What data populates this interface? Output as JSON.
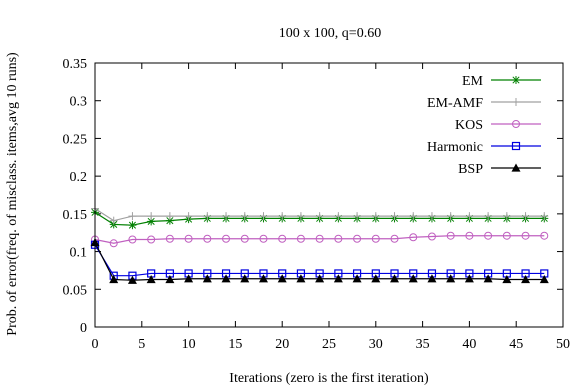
{
  "chart_data": {
    "type": "line",
    "title": "100 x 100, q=0.60",
    "xlabel": "Iterations (zero is the first iteration)",
    "ylabel": "Prob. of error(freq. of misclass. items,avg 10 runs)",
    "xlim": [
      0,
      50
    ],
    "ylim": [
      0,
      0.35
    ],
    "xticks": [
      0,
      5,
      10,
      15,
      20,
      25,
      30,
      35,
      40,
      45,
      50
    ],
    "yticks": [
      0,
      0.05,
      0.1,
      0.15,
      0.2,
      0.25,
      0.3,
      0.35
    ],
    "grid": false,
    "legend_position": "top-right",
    "x": [
      0,
      2,
      4,
      6,
      8,
      10,
      12,
      14,
      16,
      18,
      20,
      22,
      24,
      26,
      28,
      30,
      32,
      34,
      36,
      38,
      40,
      42,
      44,
      46,
      48
    ],
    "series": [
      {
        "name": "EM",
        "color": "#008000",
        "marker": "asterisk",
        "values": [
          0.152,
          0.136,
          0.135,
          0.14,
          0.141,
          0.143,
          0.144,
          0.144,
          0.144,
          0.144,
          0.144,
          0.144,
          0.144,
          0.144,
          0.144,
          0.144,
          0.144,
          0.144,
          0.144,
          0.144,
          0.144,
          0.144,
          0.144,
          0.144,
          0.144
        ]
      },
      {
        "name": "EM-AMF",
        "color": "#a0a0a0",
        "marker": "plus",
        "values": [
          0.157,
          0.141,
          0.147,
          0.147,
          0.147,
          0.147,
          0.147,
          0.147,
          0.147,
          0.147,
          0.147,
          0.147,
          0.147,
          0.147,
          0.147,
          0.147,
          0.147,
          0.147,
          0.147,
          0.147,
          0.147,
          0.147,
          0.147,
          0.147,
          0.147
        ]
      },
      {
        "name": "KOS",
        "color": "#c060c0",
        "marker": "circle",
        "values": [
          0.116,
          0.111,
          0.116,
          0.116,
          0.117,
          0.117,
          0.117,
          0.117,
          0.117,
          0.117,
          0.117,
          0.117,
          0.117,
          0.117,
          0.117,
          0.117,
          0.117,
          0.119,
          0.12,
          0.121,
          0.121,
          0.121,
          0.121,
          0.121,
          0.121
        ]
      },
      {
        "name": "Harmonic",
        "color": "#0000e0",
        "marker": "square",
        "values": [
          0.109,
          0.068,
          0.068,
          0.071,
          0.071,
          0.071,
          0.071,
          0.071,
          0.071,
          0.071,
          0.071,
          0.071,
          0.071,
          0.071,
          0.071,
          0.071,
          0.071,
          0.071,
          0.071,
          0.071,
          0.071,
          0.071,
          0.071,
          0.071,
          0.071
        ]
      },
      {
        "name": "BSP",
        "color": "#000000",
        "marker": "triangle",
        "values": [
          0.112,
          0.063,
          0.062,
          0.063,
          0.063,
          0.064,
          0.064,
          0.064,
          0.064,
          0.064,
          0.064,
          0.064,
          0.064,
          0.064,
          0.064,
          0.064,
          0.064,
          0.064,
          0.064,
          0.064,
          0.064,
          0.064,
          0.063,
          0.063,
          0.063
        ]
      }
    ]
  }
}
